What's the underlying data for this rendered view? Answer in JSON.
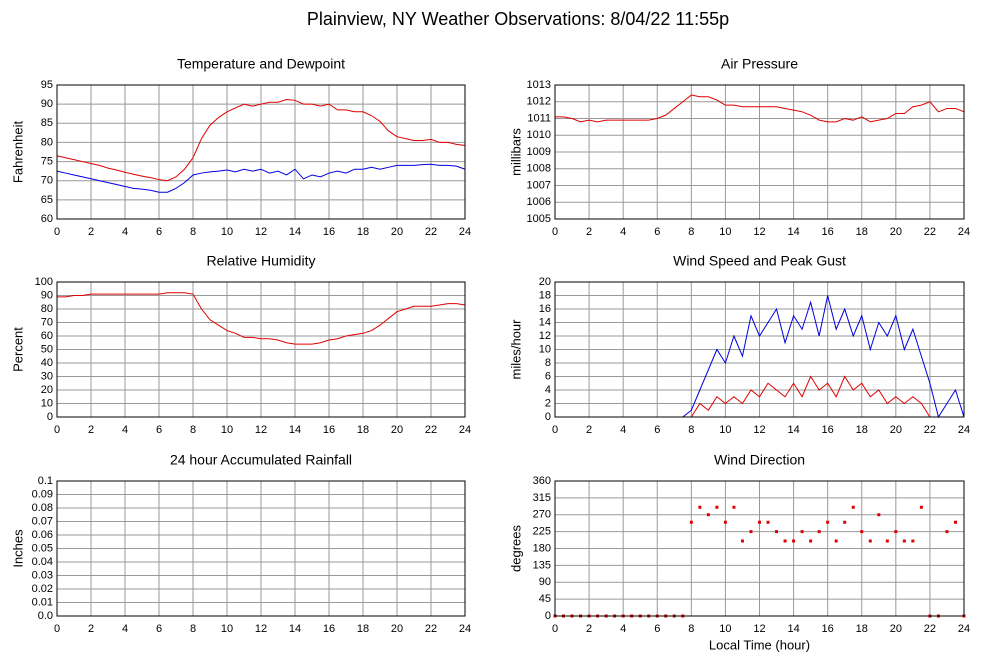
{
  "title": "Plainview, NY Weather Observations: 8/04/22 11:55p",
  "chart_data": [
    {
      "type": "line",
      "title": "Temperature and Dewpoint",
      "ylabel": "Fahrenheit",
      "x": [
        0,
        0.5,
        1,
        1.5,
        2,
        2.5,
        3,
        3.5,
        4,
        4.5,
        5,
        5.5,
        6,
        6.5,
        7,
        7.5,
        8,
        8.5,
        9,
        9.5,
        10,
        10.5,
        11,
        11.5,
        12,
        12.5,
        13,
        13.5,
        14,
        14.5,
        15,
        15.5,
        16,
        16.5,
        17,
        17.5,
        18,
        18.5,
        19,
        19.5,
        20,
        20.5,
        21,
        21.5,
        22,
        22.5,
        23,
        23.5,
        24
      ],
      "series": [
        {
          "color": "#e00000",
          "values": [
            76.5,
            76,
            75.5,
            75,
            74.5,
            74,
            73.3,
            72.8,
            72.2,
            71.7,
            71.2,
            70.8,
            70.3,
            70,
            71,
            73,
            76,
            81,
            84.5,
            86.5,
            88,
            89,
            90,
            89.5,
            90,
            90.5,
            90.5,
            91.2,
            91,
            90,
            90,
            89.5,
            90,
            88.5,
            88.5,
            88,
            88,
            87,
            85.5,
            83,
            81.5,
            81,
            80.5,
            80.5,
            80.8,
            80,
            80,
            79.5,
            79.2
          ]
        },
        {
          "color": "#0000e0",
          "values": [
            72.5,
            72,
            71.5,
            71,
            70.5,
            70,
            69.5,
            69,
            68.5,
            68,
            67.8,
            67.5,
            67,
            67,
            68,
            69.5,
            71.5,
            72,
            72.3,
            72.5,
            72.8,
            72.3,
            73,
            72.5,
            73,
            72,
            72.5,
            71.5,
            73,
            70.5,
            71.5,
            71,
            72,
            72.5,
            72,
            73,
            73,
            73.5,
            73,
            73.5,
            74,
            74,
            74,
            74.2,
            74.3,
            74,
            74,
            73.8,
            73
          ]
        }
      ],
      "xlim": [
        0,
        24
      ],
      "xticks": [
        0,
        2,
        4,
        6,
        8,
        10,
        12,
        14,
        16,
        18,
        20,
        22,
        24
      ],
      "ylim": [
        60,
        95
      ],
      "yticks": [
        60,
        65,
        70,
        75,
        80,
        85,
        90,
        95
      ],
      "grid": true
    },
    {
      "type": "line",
      "title": "Air Pressure",
      "ylabel": "millibars",
      "x": [
        0,
        0.5,
        1,
        1.5,
        2,
        2.5,
        3,
        3.5,
        4,
        4.5,
        5,
        5.5,
        6,
        6.5,
        7,
        7.5,
        8,
        8.5,
        9,
        9.5,
        10,
        10.5,
        11,
        11.5,
        12,
        12.5,
        13,
        13.5,
        14,
        14.5,
        15,
        15.5,
        16,
        16.5,
        17,
        17.5,
        18,
        18.5,
        19,
        19.5,
        20,
        20.5,
        21,
        21.5,
        22,
        22.5,
        23,
        23.5,
        24
      ],
      "series": [
        {
          "color": "#e00000",
          "values": [
            1011.1,
            1011.1,
            1011,
            1010.8,
            1010.9,
            1010.8,
            1010.9,
            1010.9,
            1010.9,
            1010.9,
            1010.9,
            1010.9,
            1011,
            1011.2,
            1011.6,
            1012,
            1012.4,
            1012.3,
            1012.3,
            1012.1,
            1011.8,
            1011.8,
            1011.7,
            1011.7,
            1011.7,
            1011.7,
            1011.7,
            1011.6,
            1011.5,
            1011.4,
            1011.2,
            1010.9,
            1010.8,
            1010.8,
            1011,
            1010.9,
            1011.1,
            1010.8,
            1010.9,
            1011,
            1011.3,
            1011.3,
            1011.7,
            1011.8,
            1012,
            1011.4,
            1011.6,
            1011.6,
            1011.4
          ]
        }
      ],
      "xlim": [
        0,
        24
      ],
      "xticks": [
        0,
        2,
        4,
        6,
        8,
        10,
        12,
        14,
        16,
        18,
        20,
        22,
        24
      ],
      "ylim": [
        1005,
        1013
      ],
      "yticks": [
        1005,
        1006,
        1007,
        1008,
        1009,
        1010,
        1011,
        1012,
        1013
      ],
      "grid": true
    },
    {
      "type": "line",
      "title": "Relative Humidity",
      "ylabel": "Percent",
      "x": [
        0,
        0.5,
        1,
        1.5,
        2,
        2.5,
        3,
        3.5,
        4,
        4.5,
        5,
        5.5,
        6,
        6.5,
        7,
        7.5,
        8,
        8.5,
        9,
        9.5,
        10,
        10.5,
        11,
        11.5,
        12,
        12.5,
        13,
        13.5,
        14,
        14.5,
        15,
        15.5,
        16,
        16.5,
        17,
        17.5,
        18,
        18.5,
        19,
        19.5,
        20,
        20.5,
        21,
        21.5,
        22,
        22.5,
        23,
        23.5,
        24
      ],
      "series": [
        {
          "color": "#e00000",
          "values": [
            89,
            89,
            90,
            90,
            91,
            91,
            91,
            91,
            91,
            91,
            91,
            91,
            91,
            92,
            92,
            92,
            91,
            80,
            72,
            68,
            64,
            62,
            59,
            59,
            58,
            58,
            57,
            55,
            54,
            54,
            54,
            55,
            57,
            58,
            60,
            61,
            62,
            64,
            68,
            73,
            78,
            80,
            82,
            82,
            82,
            83,
            84,
            84,
            83
          ]
        }
      ],
      "xlim": [
        0,
        24
      ],
      "xticks": [
        0,
        2,
        4,
        6,
        8,
        10,
        12,
        14,
        16,
        18,
        20,
        22,
        24
      ],
      "ylim": [
        0,
        100
      ],
      "yticks": [
        0,
        10,
        20,
        30,
        40,
        50,
        60,
        70,
        80,
        90,
        100
      ],
      "grid": true
    },
    {
      "type": "line",
      "title": "Wind Speed and Peak Gust",
      "ylabel": "miles/hour",
      "x": [
        0,
        0.5,
        1,
        1.5,
        2,
        2.5,
        3,
        3.5,
        4,
        4.5,
        5,
        5.5,
        6,
        6.5,
        7,
        7.5,
        8,
        8.5,
        9,
        9.5,
        10,
        10.5,
        11,
        11.5,
        12,
        12.5,
        13,
        13.5,
        14,
        14.5,
        15,
        15.5,
        16,
        16.5,
        17,
        17.5,
        18,
        18.5,
        19,
        19.5,
        20,
        20.5,
        21,
        21.5,
        22,
        22.5,
        23,
        23.5,
        24
      ],
      "series": [
        {
          "color": "#0000e0",
          "values": [
            0,
            0,
            0,
            0,
            0,
            0,
            0,
            0,
            0,
            0,
            0,
            0,
            0,
            0,
            0,
            0,
            1,
            4,
            7,
            10,
            8,
            12,
            9,
            15,
            12,
            14,
            16,
            11,
            15,
            13,
            17,
            12,
            18,
            13,
            16,
            12,
            15,
            10,
            14,
            12,
            15,
            10,
            13,
            9,
            5,
            0,
            2,
            4,
            0
          ]
        },
        {
          "color": "#e00000",
          "values": [
            0,
            0,
            0,
            0,
            0,
            0,
            0,
            0,
            0,
            0,
            0,
            0,
            0,
            0,
            0,
            0,
            0,
            2,
            1,
            3,
            2,
            3,
            2,
            4,
            3,
            5,
            4,
            3,
            5,
            3,
            6,
            4,
            5,
            3,
            6,
            4,
            5,
            3,
            4,
            2,
            3,
            2,
            3,
            2,
            0,
            0,
            0,
            0,
            0
          ]
        }
      ],
      "xlim": [
        0,
        24
      ],
      "xticks": [
        0,
        2,
        4,
        6,
        8,
        10,
        12,
        14,
        16,
        18,
        20,
        22,
        24
      ],
      "ylim": [
        0,
        20
      ],
      "yticks": [
        0,
        2,
        4,
        6,
        8,
        10,
        12,
        14,
        16,
        18,
        20
      ],
      "grid": true
    },
    {
      "type": "line",
      "title": "24 hour Accumulated Rainfall",
      "ylabel": "Inches",
      "x": [
        0,
        24
      ],
      "series": [
        {
          "color": "#e00000",
          "values": [
            0,
            0
          ]
        }
      ],
      "xlim": [
        0,
        24
      ],
      "xticks": [
        0,
        2,
        4,
        6,
        8,
        10,
        12,
        14,
        16,
        18,
        20,
        22,
        24
      ],
      "ylim": [
        0,
        0.1
      ],
      "yticks": [
        {
          "value": 0,
          "label": "0.0"
        },
        0.01,
        0.02,
        0.03,
        0.04,
        0.05,
        0.06,
        0.07,
        0.08,
        0.09,
        0.1
      ],
      "grid": true
    },
    {
      "type": "scatter",
      "title": "Wind Direction",
      "ylabel": "degrees",
      "xlabel": "Local Time (hour)",
      "x": [
        0,
        0.5,
        1,
        1.5,
        2,
        2.5,
        3,
        3.5,
        4,
        4.5,
        5,
        5.5,
        6,
        6.5,
        7,
        7.5,
        8,
        8.5,
        9,
        9.5,
        10,
        10.5,
        11,
        11.5,
        12,
        12.5,
        13,
        13.5,
        14,
        14.5,
        15,
        15.5,
        16,
        16.5,
        17,
        17.5,
        18,
        18.5,
        19,
        19.5,
        20,
        20.5,
        21,
        21.5,
        22,
        22.5,
        23,
        23.5,
        24
      ],
      "series": [
        {
          "color": "#e00000",
          "values": [
            0,
            0,
            0,
            0,
            0,
            0,
            0,
            0,
            0,
            0,
            0,
            0,
            0,
            0,
            0,
            0,
            250,
            290,
            270,
            290,
            250,
            290,
            200,
            225,
            250,
            250,
            225,
            200,
            200,
            225,
            200,
            225,
            250,
            200,
            250,
            290,
            225,
            200,
            270,
            200,
            225,
            200,
            200,
            290,
            0,
            0,
            225,
            250,
            0
          ]
        }
      ],
      "xlim": [
        0,
        24
      ],
      "xticks": [
        0,
        2,
        4,
        6,
        8,
        10,
        12,
        14,
        16,
        18,
        20,
        22,
        24
      ],
      "ylim": [
        0,
        360
      ],
      "yticks": [
        0,
        45,
        90,
        135,
        180,
        225,
        270,
        315,
        360
      ],
      "grid": true
    }
  ]
}
